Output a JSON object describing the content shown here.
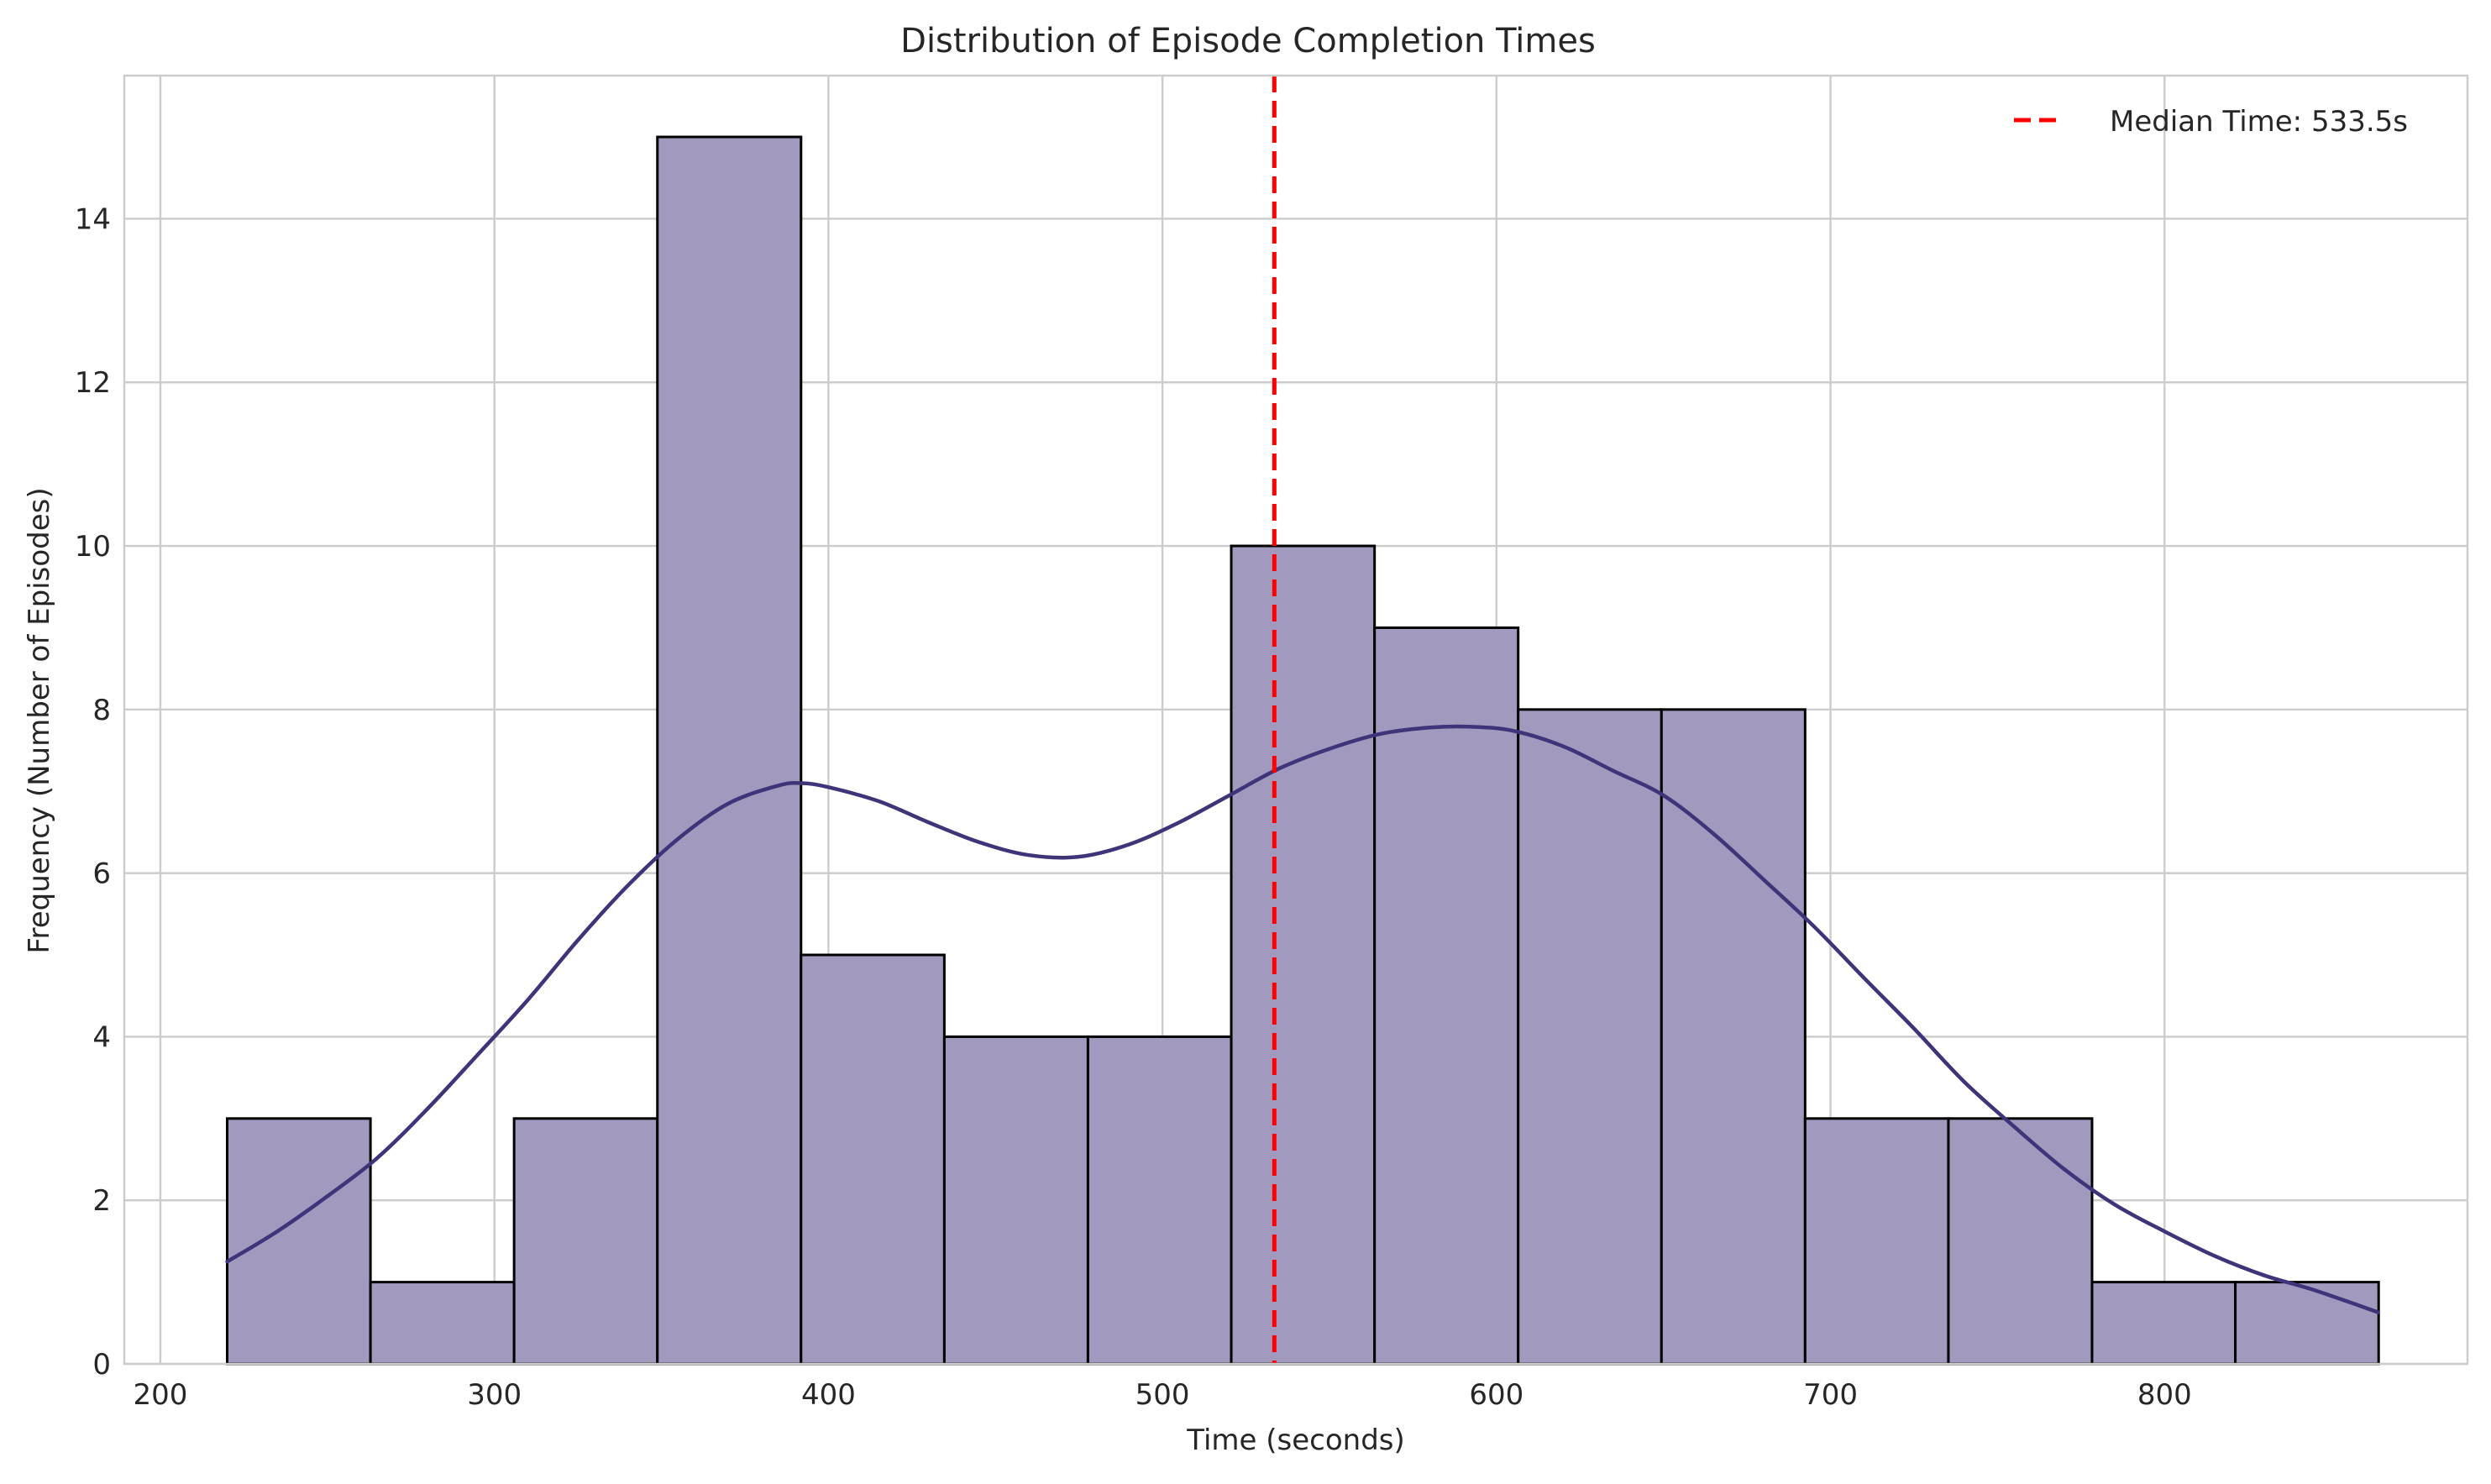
{
  "chart_data": {
    "type": "bar",
    "title": "Distribution of Episode Completion Times",
    "xlabel": "Time (seconds)",
    "ylabel": "Frequency (Number of Episodes)",
    "xlim": [
      189.2,
      890.7
    ],
    "ylim": [
      0,
      15.75
    ],
    "xticks": [
      200,
      300,
      400,
      500,
      600,
      700,
      800
    ],
    "yticks": [
      0,
      2,
      4,
      6,
      8,
      10,
      12,
      14
    ],
    "grid": true,
    "legend_position": "top-right",
    "bins": {
      "edges": [
        220.0,
        262.9,
        305.9,
        348.8,
        391.8,
        434.7,
        477.7,
        520.6,
        563.5,
        606.5,
        649.4,
        692.4,
        735.3,
        778.3,
        821.2,
        864.1
      ],
      "counts": [
        3,
        1,
        3,
        15,
        5,
        4,
        4,
        10,
        9,
        8,
        8,
        3,
        3,
        1,
        1
      ]
    },
    "series": [
      {
        "type": "kde",
        "x": [
          220,
          235,
          250,
          265,
          280,
          295,
          310,
          325,
          340,
          355,
          370,
          385,
          392,
          400,
          415,
          430,
          445,
          460,
          475,
          490,
          505,
          520,
          535,
          550,
          565,
          580,
          592,
          605,
          620,
          635,
          650,
          665,
          680,
          695,
          710,
          725,
          740,
          755,
          770,
          785,
          800,
          815,
          830,
          845,
          864
        ],
        "y": [
          1.25,
          1.62,
          2.05,
          2.52,
          3.12,
          3.78,
          4.45,
          5.18,
          5.85,
          6.42,
          6.85,
          7.07,
          7.1,
          7.05,
          6.88,
          6.62,
          6.38,
          6.22,
          6.2,
          6.35,
          6.62,
          6.95,
          7.28,
          7.52,
          7.7,
          7.78,
          7.79,
          7.74,
          7.55,
          7.25,
          6.95,
          6.48,
          5.92,
          5.35,
          4.72,
          4.1,
          3.45,
          2.9,
          2.38,
          1.95,
          1.62,
          1.32,
          1.08,
          0.9,
          0.63
        ]
      },
      {
        "type": "vline",
        "name": "Median Time: 533.5s",
        "x": 533.5
      }
    ],
    "colors": {
      "bar_fill": "#a199be",
      "bar_edge": "#000000",
      "kde_line": "#3f3479",
      "median_line": "#ff0000",
      "grid": "#cccccc",
      "axes_edge": "#cccccc",
      "text": "#262626"
    }
  }
}
